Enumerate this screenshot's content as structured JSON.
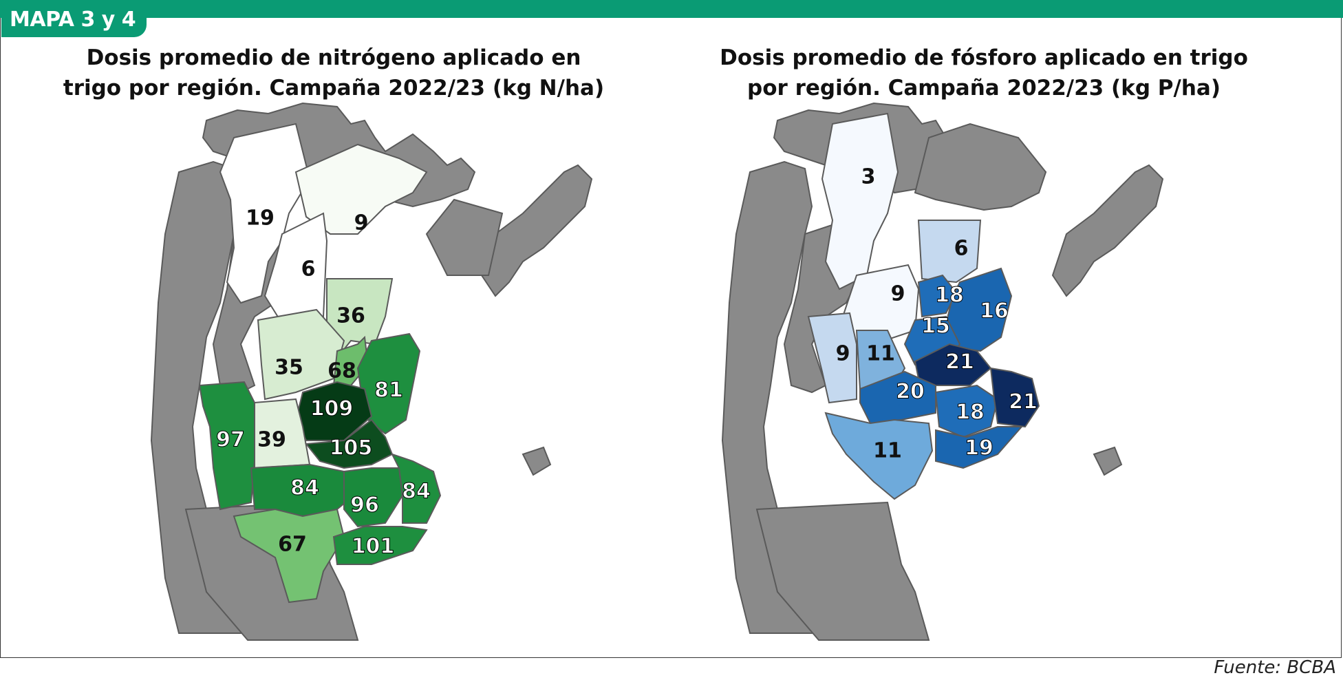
{
  "header": {
    "tag": "MAPA 3 y 4"
  },
  "left_map": {
    "title_line1": "Dosis promedio de nitrógeno aplicado en",
    "title_line2": "trigo por región. Campaña 2022/23 (kg N/ha)",
    "regions": [
      {
        "id": "nw",
        "value": "19",
        "color": "#ffffff"
      },
      {
        "id": "n",
        "value": "9",
        "color": "#f7fbf5"
      },
      {
        "id": "nc",
        "value": "6",
        "color": "#ffffff"
      },
      {
        "id": "sfn",
        "value": "36",
        "color": "#c8e6c1"
      },
      {
        "id": "cw",
        "value": "35",
        "color": "#d7ecd1"
      },
      {
        "id": "sfc",
        "value": "68",
        "color": "#6dbd6c"
      },
      {
        "id": "er",
        "value": "81",
        "color": "#1e8f3f"
      },
      {
        "id": "sfs",
        "value": "109",
        "color": "#053b16"
      },
      {
        "id": "cs",
        "value": "39",
        "color": "#e3f1de"
      },
      {
        "id": "sl",
        "value": "97",
        "color": "#1e8f3f"
      },
      {
        "id": "nba",
        "value": "105",
        "color": "#0d4d1f"
      },
      {
        "id": "wba",
        "value": "84",
        "color": "#1a8a3c"
      },
      {
        "id": "cba",
        "value": "96",
        "color": "#1a8a3c"
      },
      {
        "id": "eba",
        "value": "84",
        "color": "#1e8f3f"
      },
      {
        "id": "lp",
        "value": "67",
        "color": "#74c272"
      },
      {
        "id": "sba",
        "value": "101",
        "color": "#1e8f3f"
      }
    ]
  },
  "right_map": {
    "title_line1": "Dosis promedio de fósforo aplicado en trigo",
    "title_line2": "por región. Campaña 2022/23 (kg P/ha)",
    "regions": [
      {
        "id": "nw",
        "value": "3",
        "color": "#f5f9fe"
      },
      {
        "id": "sfn",
        "value": "6",
        "color": "#c5d9ef"
      },
      {
        "id": "cw",
        "value": "9",
        "color": "#f5f9fe"
      },
      {
        "id": "sfc",
        "value": "18",
        "color": "#1f6db8"
      },
      {
        "id": "er",
        "value": "16",
        "color": "#1a66b0"
      },
      {
        "id": "sfs",
        "value": "15",
        "color": "#1f6db8"
      },
      {
        "id": "sl",
        "value": "9",
        "color": "#c5d9ef"
      },
      {
        "id": "cs",
        "value": "11",
        "color": "#7fb2dd"
      },
      {
        "id": "nba",
        "value": "21",
        "color": "#0d2a5f"
      },
      {
        "id": "wba",
        "value": "20",
        "color": "#1a66b0"
      },
      {
        "id": "cba",
        "value": "18",
        "color": "#1f6db8"
      },
      {
        "id": "eba",
        "value": "21",
        "color": "#0d2a5f"
      },
      {
        "id": "lp",
        "value": "11",
        "color": "#6eaadb"
      },
      {
        "id": "sba",
        "value": "19",
        "color": "#1a66b0"
      }
    ]
  },
  "colors": {
    "base_gray": "#8a8a8a",
    "border": "#5a5a5a",
    "brand": "#0a9b74"
  },
  "source": "Fuente: BCBA"
}
